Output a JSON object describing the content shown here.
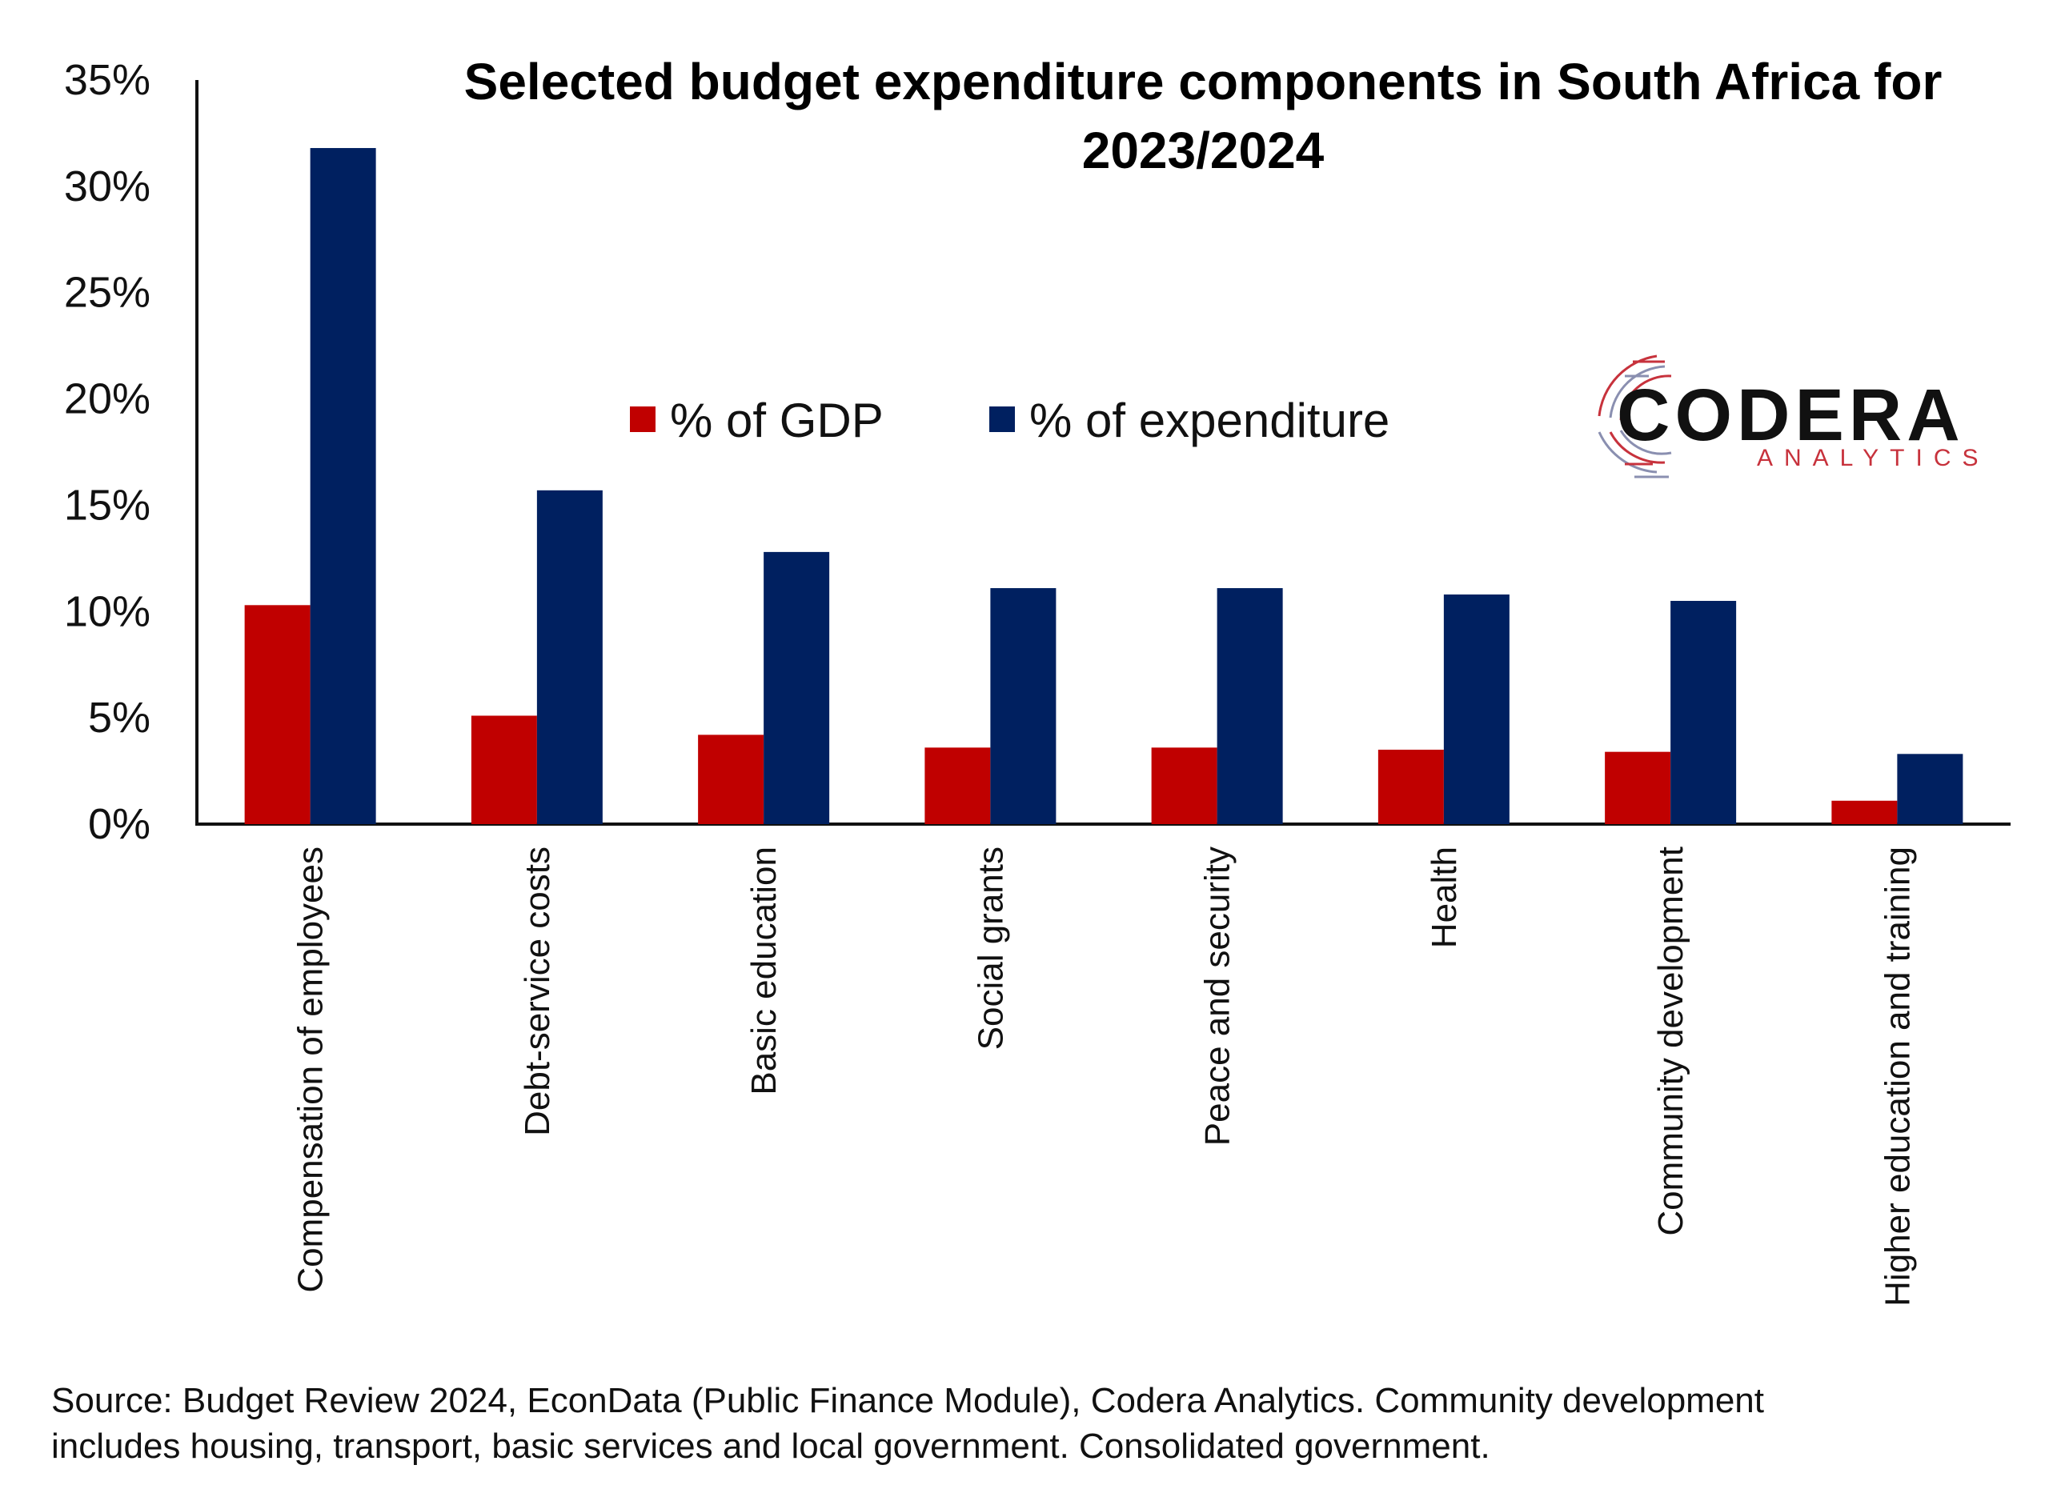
{
  "chart_data": {
    "type": "bar",
    "title_lines": [
      "Selected budget expenditure components in South Africa for",
      "2023/2024"
    ],
    "categories": [
      "Compensation of employees",
      "Debt-service costs",
      "Basic education",
      "Social grants",
      "Peace and security",
      "Health",
      "Community development",
      "Higher education and training"
    ],
    "series": [
      {
        "name": "% of GDP",
        "color": "#c00000",
        "values": [
          10.3,
          5.1,
          4.2,
          3.6,
          3.6,
          3.5,
          3.4,
          1.1
        ]
      },
      {
        "name": "% of expenditure",
        "color": "#002060",
        "values": [
          31.8,
          15.7,
          12.8,
          11.1,
          11.1,
          10.8,
          10.5,
          3.3
        ]
      }
    ],
    "ylim": [
      0,
      35
    ],
    "yticks": [
      "0%",
      "5%",
      "10%",
      "15%",
      "20%",
      "25%",
      "30%",
      "35%"
    ],
    "grid": false,
    "legend_position": "top-center"
  },
  "logo": {
    "name": "CODERA",
    "subtitle": "ANALYTICS"
  },
  "source_lines": [
    "Source: Budget Review 2024, EconData (Public Finance Module), Codera Analytics. Community development",
    "includes housing, transport, basic services and local government. Consolidated government."
  ]
}
